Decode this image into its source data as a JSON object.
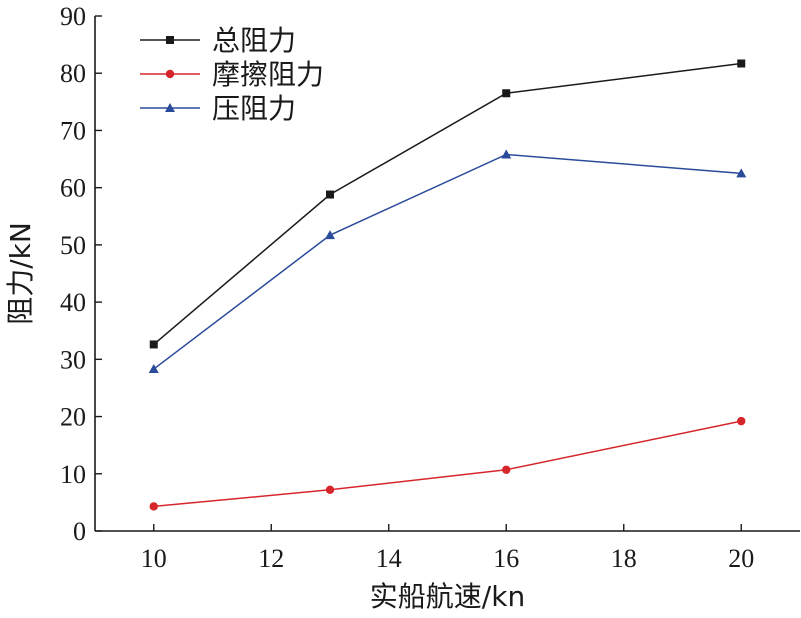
{
  "chart_data": {
    "type": "line",
    "x": [
      10,
      13,
      16,
      20
    ],
    "xlabel": "实船航速/kn",
    "ylabel": "阻力/kN",
    "xlim": [
      9,
      21
    ],
    "ylim": [
      0,
      90
    ],
    "xticks": [
      10,
      12,
      14,
      16,
      18,
      20
    ],
    "yticks": [
      0,
      10,
      20,
      30,
      40,
      50,
      60,
      70,
      80,
      90
    ],
    "grid": false,
    "legend_position": "top-left",
    "series": [
      {
        "name": "总阻力",
        "values": [
          32.6,
          58.8,
          76.5,
          81.7
        ],
        "color": "#1a1a1a",
        "marker": "square"
      },
      {
        "name": "摩擦阻力",
        "values": [
          4.3,
          7.2,
          10.7,
          19.2
        ],
        "color": "#d6262b",
        "marker": "circle"
      },
      {
        "name": "压阻力",
        "values": [
          28.3,
          51.7,
          65.8,
          62.5
        ],
        "color": "#2a4a9a",
        "marker": "triangle"
      }
    ]
  }
}
